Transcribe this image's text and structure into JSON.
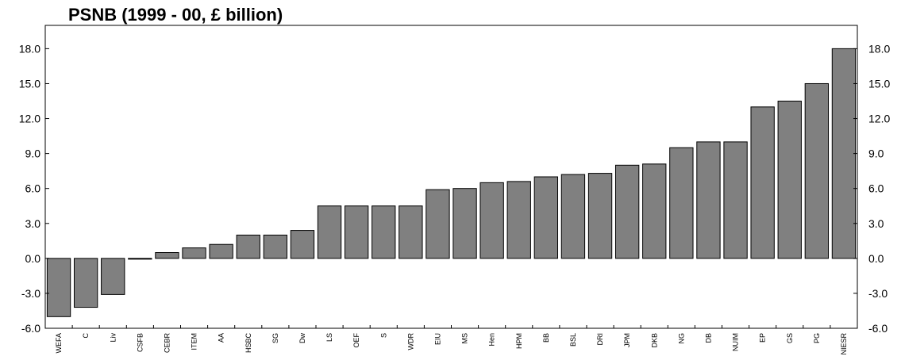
{
  "chart_data": {
    "type": "bar",
    "title": "PSNB (1999 - 00, £ billion)",
    "xlabel": "",
    "ylabel": "",
    "ylim": [
      -6.0,
      20.0
    ],
    "yticks": [
      "18.0",
      "15.0",
      "12.0",
      "9.0",
      "6.0",
      "3.0",
      "0.0",
      "-3.0",
      "-6.0"
    ],
    "ytick_values": [
      18,
      15,
      12,
      9,
      6,
      3,
      0,
      -3,
      -6
    ],
    "categories": [
      "WEFA",
      "C",
      "Liv",
      "CSFB",
      "CEBR",
      "ITEM",
      "AA",
      "HSBC",
      "SG",
      "Dw",
      "LS",
      "OEF",
      "S",
      "WDR",
      "EIU",
      "MS",
      "Hen",
      "HPM",
      "BB",
      "BSL",
      "DRI",
      "JPM",
      "DKB",
      "NG",
      "DB",
      "NUIM",
      "EP",
      "GS",
      "PG",
      "NIESR"
    ],
    "values": [
      -5.0,
      -4.2,
      -3.1,
      0.0,
      0.5,
      0.9,
      1.2,
      2.0,
      2.0,
      2.4,
      4.5,
      4.5,
      4.5,
      4.5,
      5.9,
      6.0,
      6.5,
      6.6,
      7.0,
      7.2,
      7.3,
      8.0,
      8.1,
      9.5,
      10.0,
      10.0,
      13.0,
      13.5,
      15.0,
      18.0
    ],
    "grid": false,
    "bar_color": "#808080",
    "legend": "none"
  }
}
